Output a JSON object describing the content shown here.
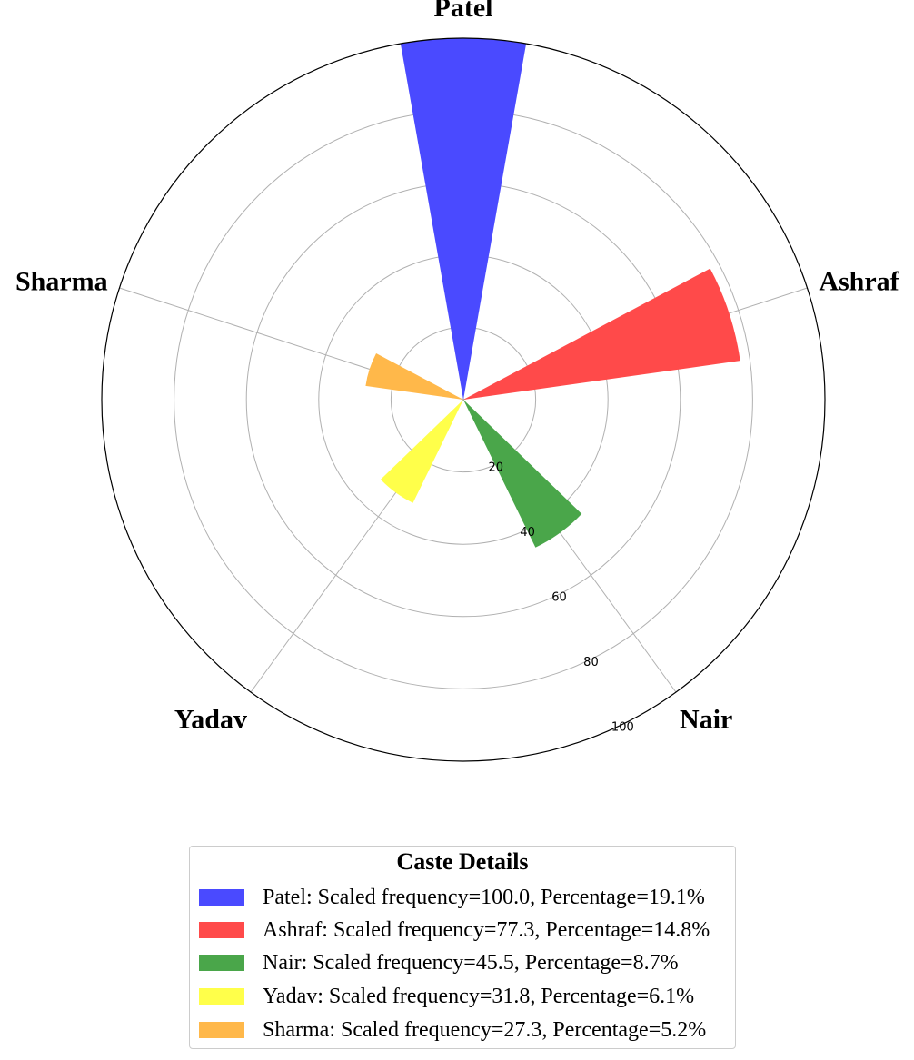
{
  "chart_data": {
    "type": "bar",
    "polar": true,
    "categories": [
      "Patel",
      "Ashraf",
      "Nair",
      "Yadav",
      "Sharma"
    ],
    "values": [
      100.0,
      77.3,
      45.5,
      31.8,
      27.3
    ],
    "colors": [
      "#4a4aff",
      "#ff4a4a",
      "#4aa64a",
      "#ffff4a",
      "#ffb84a"
    ],
    "rlim": [
      0,
      100
    ],
    "rticks": [
      "20",
      "40",
      "60",
      "80",
      "100"
    ],
    "grid": true
  },
  "legend": {
    "title": "Caste Details",
    "items": [
      {
        "label": "Patel: Scaled frequency=100.0, Percentage=19.1%",
        "color": "#4a4aff"
      },
      {
        "label": "Ashraf: Scaled frequency=77.3, Percentage=14.8%",
        "color": "#ff4a4a"
      },
      {
        "label": "Nair: Scaled frequency=45.5, Percentage=8.7%",
        "color": "#4aa64a"
      },
      {
        "label": "Yadav: Scaled frequency=31.8, Percentage=6.1%",
        "color": "#ffff4a"
      },
      {
        "label": "Sharma: Scaled frequency=27.3, Percentage=5.2%",
        "color": "#ffb84a"
      }
    ]
  }
}
